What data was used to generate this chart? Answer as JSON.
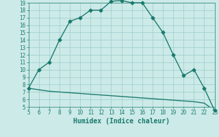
{
  "xlabel": "Humidex (Indice chaleur)",
  "ylabel": "",
  "x_main": [
    5,
    6,
    7,
    8,
    9,
    10,
    11,
    12,
    13,
    14,
    15,
    16,
    17,
    18,
    19,
    20,
    21,
    22,
    23
  ],
  "y_main": [
    7.5,
    10,
    11,
    14,
    16.5,
    17,
    18,
    18,
    19.2,
    19.3,
    19,
    19,
    17,
    15,
    12,
    9.2,
    10,
    7.5,
    4.5
  ],
  "x_flat": [
    5,
    6,
    7,
    8,
    9,
    10,
    11,
    12,
    13,
    14,
    15,
    16,
    17,
    18,
    19,
    20,
    21,
    22,
    23
  ],
  "y_flat": [
    7.5,
    7.3,
    7.1,
    7.0,
    6.9,
    6.8,
    6.7,
    6.6,
    6.5,
    6.4,
    6.3,
    6.2,
    6.1,
    6.0,
    5.9,
    5.8,
    5.7,
    5.5,
    4.5
  ],
  "line_color": "#1a7a6e",
  "bg_color": "#cceae7",
  "grid_color": "#99cccc",
  "xlim": [
    5,
    23
  ],
  "ylim": [
    5,
    19
  ],
  "xticks": [
    5,
    6,
    7,
    8,
    9,
    10,
    11,
    12,
    13,
    14,
    15,
    16,
    17,
    18,
    19,
    20,
    21,
    22,
    23
  ],
  "yticks": [
    5,
    6,
    7,
    8,
    9,
    10,
    11,
    12,
    13,
    14,
    15,
    16,
    17,
    18,
    19
  ],
  "marker_size": 2.5,
  "line_width": 1.0,
  "xlabel_fontsize": 7,
  "tick_fontsize": 5.5
}
